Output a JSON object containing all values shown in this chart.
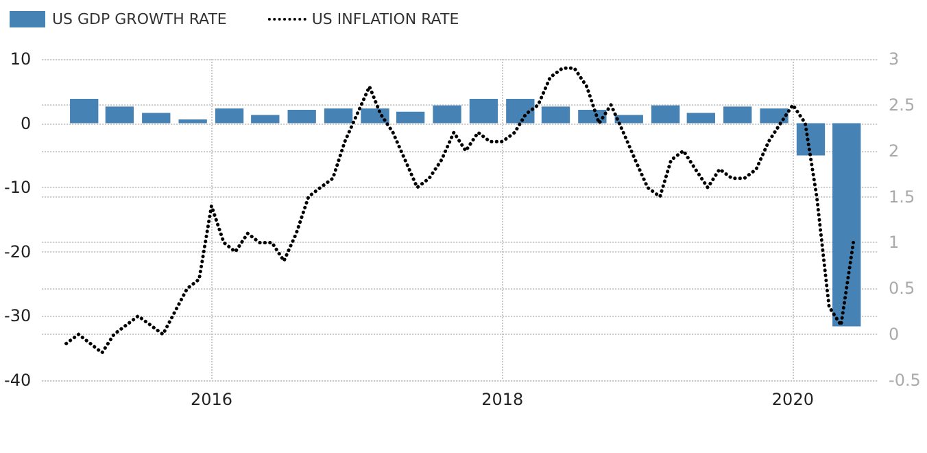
{
  "chart_data": {
    "type": "bar",
    "xlim": [
      "2014-11-01",
      "2020-08-01"
    ],
    "xticks": [
      {
        "value": "2016-01-01",
        "label": "2016"
      },
      {
        "value": "2018-01-01",
        "label": "2018"
      },
      {
        "value": "2020-01-01",
        "label": "2020"
      }
    ],
    "ylim": [
      -40,
      10
    ],
    "yticks": [
      -40,
      -30,
      -20,
      -10,
      0,
      10
    ],
    "y2lim": [
      -0.5,
      3
    ],
    "y2ticks": [
      -0.5,
      0,
      0.5,
      1,
      1.5,
      2,
      2.5,
      3
    ],
    "grid": true,
    "legend": "top left",
    "series": [
      {
        "name": "US GDP GROWTH RATE",
        "color": "#4682b4",
        "x": [
          "2015-02-15",
          "2015-05-15",
          "2015-08-15",
          "2015-11-15",
          "2016-02-15",
          "2016-05-15",
          "2016-08-15",
          "2016-11-15",
          "2017-02-15",
          "2017-05-15",
          "2017-08-15",
          "2017-11-15",
          "2018-02-15",
          "2018-05-15",
          "2018-08-15",
          "2018-11-15",
          "2019-02-15",
          "2019-05-15",
          "2019-08-15",
          "2019-11-15",
          "2020-02-15",
          "2020-05-15"
        ],
        "values": [
          3.8,
          2.6,
          1.6,
          0.6,
          2.3,
          1.3,
          2.1,
          2.3,
          2.3,
          1.8,
          2.8,
          3.8,
          3.8,
          2.6,
          2.1,
          1.3,
          2.8,
          1.6,
          2.6,
          2.3,
          -5.0,
          -31.6
        ]
      },
      {
        "name": "US INFLATION RATE",
        "type": "line",
        "axis": "y2",
        "color": "#000000",
        "line_style": "dotted",
        "marker": "none",
        "x": [
          "2015-01",
          "2015-02",
          "2015-04",
          "2015-05",
          "2015-07",
          "2015-09",
          "2015-11",
          "2015-12",
          "2016-01",
          "2016-02",
          "2016-03",
          "2016-04",
          "2016-05",
          "2016-06",
          "2016-07",
          "2016-08",
          "2016-09",
          "2016-10",
          "2016-11",
          "2016-12",
          "2017-02",
          "2017-03",
          "2017-04",
          "2017-06",
          "2017-07",
          "2017-08",
          "2017-09",
          "2017-10",
          "2017-11",
          "2017-12",
          "2018-01",
          "2018-02",
          "2018-03",
          "2018-04",
          "2018-05",
          "2018-06",
          "2018-07",
          "2018-08",
          "2018-09",
          "2018-10",
          "2018-11",
          "2018-12",
          "2019-01",
          "2019-02",
          "2019-03",
          "2019-04",
          "2019-05",
          "2019-06",
          "2019-07",
          "2019-08",
          "2019-09",
          "2019-10",
          "2019-11",
          "2019-12",
          "2020-01",
          "2020-02",
          "2020-03",
          "2020-04",
          "2020-05",
          "2020-06"
        ],
        "values": [
          -0.1,
          0.0,
          -0.2,
          0.0,
          0.2,
          0.0,
          0.5,
          0.6,
          1.4,
          1.0,
          0.9,
          1.1,
          1.0,
          1.0,
          0.8,
          1.1,
          1.5,
          1.6,
          1.7,
          2.1,
          2.7,
          2.4,
          2.2,
          1.6,
          1.7,
          1.9,
          2.2,
          2.0,
          2.2,
          2.1,
          2.1,
          2.2,
          2.4,
          2.5,
          2.8,
          2.9,
          2.9,
          2.7,
          2.3,
          2.5,
          2.2,
          1.9,
          1.6,
          1.5,
          1.9,
          2.0,
          1.8,
          1.6,
          1.8,
          1.7,
          1.7,
          1.8,
          2.1,
          2.3,
          2.5,
          2.3,
          1.5,
          0.3,
          0.1,
          1.0
        ]
      }
    ]
  }
}
